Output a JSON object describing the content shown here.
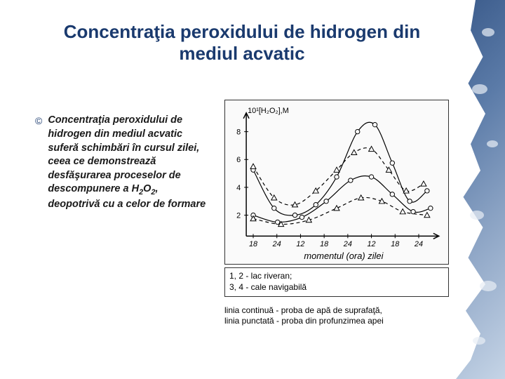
{
  "title": "Concentraţia peroxidului de hidrogen din mediul acvatic",
  "bullet": {
    "text_before": "Concentraţia peroxidului de hidrogen din mediul acvatic suferă schimbări în cursul zilei, ceea ce demonstrează desfăşurarea proceselor de descompunere a H",
    "sub1": "2",
    "mid": "O",
    "sub2": "2",
    "text_after": ", deopotrivă cu a celor de formare"
  },
  "chart": {
    "ylabel_top": "10¹[H₂O₂],M",
    "y_ticks": [
      "8",
      "6",
      "4",
      "2"
    ],
    "x_ticks": [
      "18",
      "24",
      "12",
      "18",
      "24",
      "12",
      "18",
      "24"
    ],
    "x_label": "momentul (ora) zilei",
    "series": {
      "s1_solid": {
        "color": "#000000",
        "stroke_width": 1.2,
        "dash": "none",
        "marker": "circle",
        "points": [
          {
            "x": 40,
            "y": 100
          },
          {
            "x": 70,
            "y": 155
          },
          {
            "x": 100,
            "y": 165
          },
          {
            "x": 130,
            "y": 150
          },
          {
            "x": 160,
            "y": 110
          },
          {
            "x": 190,
            "y": 45
          },
          {
            "x": 215,
            "y": 35
          },
          {
            "x": 240,
            "y": 90
          },
          {
            "x": 265,
            "y": 145
          },
          {
            "x": 290,
            "y": 130
          }
        ]
      },
      "s2_dash": {
        "color": "#000000",
        "stroke_width": 1.2,
        "dash": "5,4",
        "marker": "triangle",
        "points": [
          {
            "x": 40,
            "y": 95
          },
          {
            "x": 70,
            "y": 140
          },
          {
            "x": 100,
            "y": 150
          },
          {
            "x": 130,
            "y": 130
          },
          {
            "x": 160,
            "y": 100
          },
          {
            "x": 185,
            "y": 75
          },
          {
            "x": 210,
            "y": 70
          },
          {
            "x": 235,
            "y": 100
          },
          {
            "x": 260,
            "y": 130
          },
          {
            "x": 285,
            "y": 120
          }
        ]
      },
      "s3_solid_low": {
        "color": "#000000",
        "stroke_width": 1.2,
        "dash": "none",
        "marker": "circle",
        "points": [
          {
            "x": 40,
            "y": 165
          },
          {
            "x": 75,
            "y": 175
          },
          {
            "x": 110,
            "y": 168
          },
          {
            "x": 145,
            "y": 145
          },
          {
            "x": 180,
            "y": 115
          },
          {
            "x": 210,
            "y": 110
          },
          {
            "x": 240,
            "y": 135
          },
          {
            "x": 270,
            "y": 160
          },
          {
            "x": 295,
            "y": 155
          }
        ]
      },
      "s4_dash_low": {
        "color": "#000000",
        "stroke_width": 1.2,
        "dash": "5,4",
        "marker": "triangle",
        "points": [
          {
            "x": 40,
            "y": 170
          },
          {
            "x": 80,
            "y": 178
          },
          {
            "x": 120,
            "y": 172
          },
          {
            "x": 160,
            "y": 155
          },
          {
            "x": 195,
            "y": 140
          },
          {
            "x": 225,
            "y": 145
          },
          {
            "x": 255,
            "y": 160
          },
          {
            "x": 290,
            "y": 165
          }
        ]
      }
    }
  },
  "legend1": {
    "line1": "1, 2 - lac riveran;",
    "line2": "3, 4 - cale navigabilă"
  },
  "legend2": {
    "line1": "linia continuă - proba de apă de suprafaţă,",
    "line2": "linia punctată - proba din profunzimea apei"
  }
}
